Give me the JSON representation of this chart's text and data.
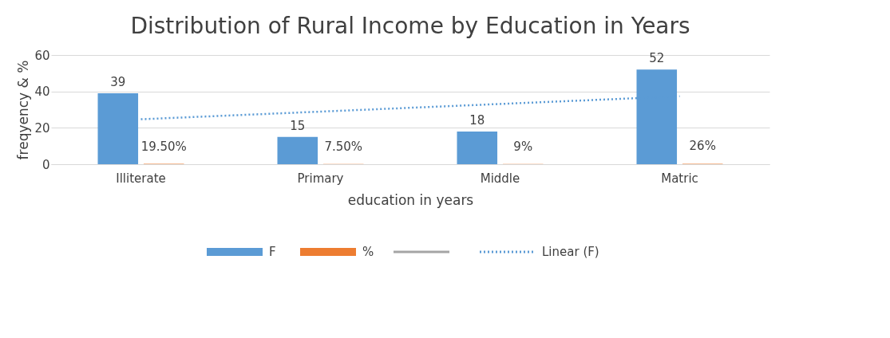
{
  "chart_data": {
    "type": "bar",
    "title": "Distribution of Rural Income by Education in Years",
    "xlabel": "education in years",
    "ylabel": "freqyency & %",
    "categories": [
      "Illiterate",
      "Primary",
      "Middle",
      "Matric"
    ],
    "series": [
      {
        "name": "F",
        "color": "#5b9bd5",
        "values": [
          39,
          15,
          18,
          52
        ],
        "value_labels": [
          "39",
          "15",
          "18",
          "52"
        ]
      },
      {
        "name": "%",
        "color": "#ed7d31",
        "values": [
          0.195,
          0.075,
          0.09,
          0.26
        ],
        "value_labels": [
          "19.50%",
          "7.50%",
          "9%",
          "26%"
        ]
      },
      {
        "type": "line",
        "color": "#a5a5a5",
        "values": [
          null,
          null,
          null,
          null
        ]
      },
      {
        "name": "Linear (F)",
        "type": "line",
        "line_style": "dotted",
        "color": "#5b9bd5",
        "x": [
          "Illiterate",
          "Primary",
          "Middle",
          "Matric"
        ],
        "values": [
          24.7,
          28.9,
          33.1,
          37.3
        ]
      }
    ],
    "ylim": [
      0,
      60
    ],
    "yticks": [
      0,
      20,
      40,
      60
    ],
    "grid": "y",
    "legend": "bottom"
  }
}
